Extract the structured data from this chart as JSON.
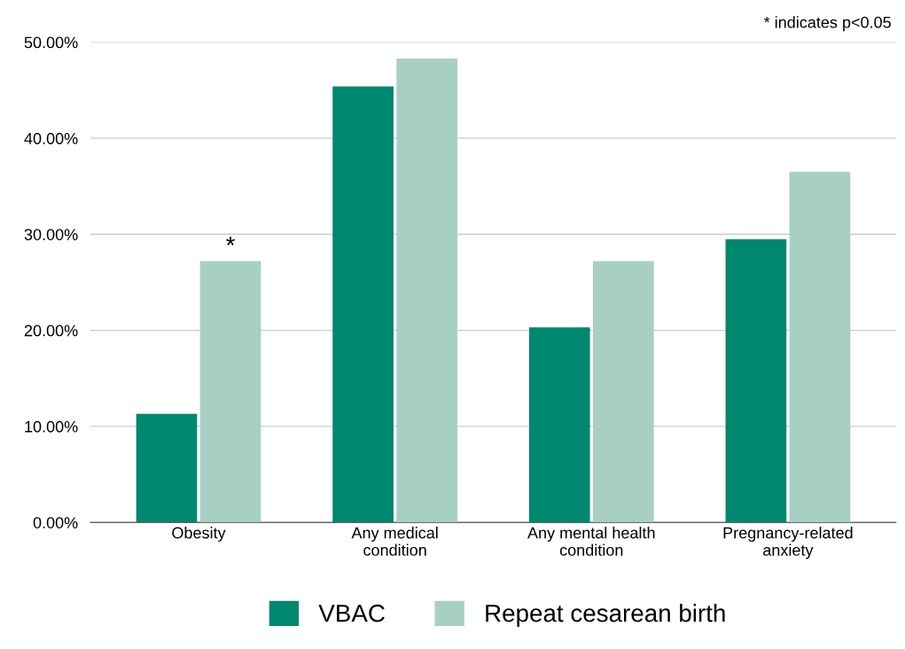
{
  "chart_data": {
    "type": "bar",
    "categories": [
      "Obesity",
      "Any medical\ncondition",
      "Any mental health\ncondition",
      "Pregnancy-related\nanxiety"
    ],
    "series": [
      {
        "name": "VBAC",
        "color": "#00876f",
        "values": [
          11.3,
          45.4,
          20.3,
          29.5
        ]
      },
      {
        "name": "Repeat cesarean birth",
        "color": "#a8cfc4",
        "values": [
          27.2,
          48.3,
          27.2,
          36.5
        ]
      }
    ],
    "ylim": [
      0,
      50
    ],
    "yticks": [
      {
        "value": 0,
        "label": "0.00%"
      },
      {
        "value": 10,
        "label": "10.00%"
      },
      {
        "value": 20,
        "label": "20.00%"
      },
      {
        "value": 30,
        "label": "30.00%"
      },
      {
        "value": 40,
        "label": "40.00%"
      },
      {
        "value": 50,
        "label": "50.00%"
      }
    ],
    "grid": "y",
    "legend": "bottom",
    "annotations": [
      "* indicates p<0.05",
      {
        "text": "*",
        "x": "Obesity",
        "y": 27.2
      }
    ]
  }
}
